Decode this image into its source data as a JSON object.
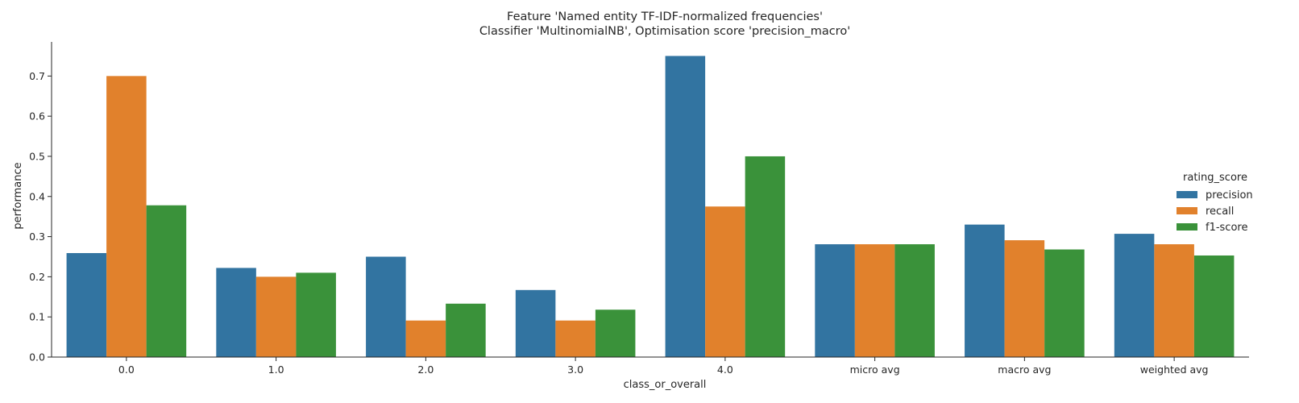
{
  "chart_data": {
    "type": "bar",
    "title_lines": [
      "Feature 'Named entity TF-IDF-normalized frequencies'",
      "Classifier 'MultinomialNB', Optimisation score 'precision_macro'"
    ],
    "xlabel": "class_or_overall",
    "ylabel": "performance",
    "ylim": [
      0,
      0.785
    ],
    "yticks": [
      0.0,
      0.1,
      0.2,
      0.3,
      0.4,
      0.5,
      0.6,
      0.7
    ],
    "ytick_labels": [
      "0.0",
      "0.1",
      "0.2",
      "0.3",
      "0.4",
      "0.5",
      "0.6",
      "0.7"
    ],
    "categories": [
      "0.0",
      "1.0",
      "2.0",
      "3.0",
      "4.0",
      "micro avg",
      "macro avg",
      "weighted avg"
    ],
    "legend_title": "rating_score",
    "legend_position": "center-right, outside plot",
    "grid": false,
    "series": [
      {
        "name": "precision",
        "color": "#3274a1",
        "values": [
          0.259,
          0.222,
          0.25,
          0.167,
          0.75,
          0.281,
          0.33,
          0.307
        ]
      },
      {
        "name": "recall",
        "color": "#e1812c",
        "values": [
          0.7,
          0.2,
          0.091,
          0.091,
          0.375,
          0.281,
          0.291,
          0.281
        ]
      },
      {
        "name": "f1-score",
        "color": "#3a923a",
        "values": [
          0.378,
          0.21,
          0.133,
          0.118,
          0.5,
          0.281,
          0.268,
          0.253
        ]
      }
    ]
  }
}
